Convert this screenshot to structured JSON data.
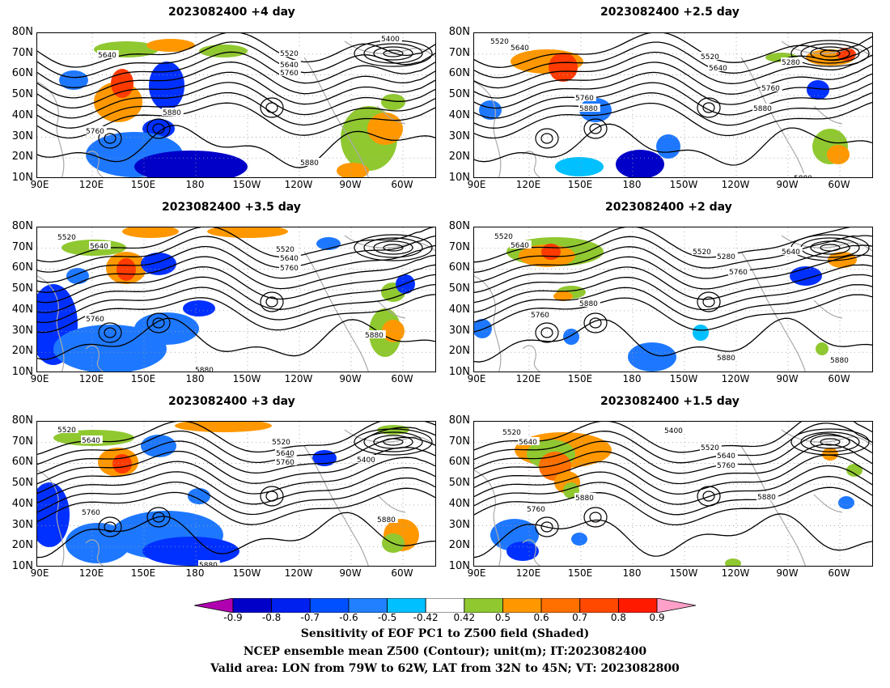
{
  "panels": [
    {
      "title": "2023082400 +4 day"
    },
    {
      "title": "2023082400 +2.5 day"
    },
    {
      "title": "2023082400 +3.5 day"
    },
    {
      "title": "2023082400 +2 day"
    },
    {
      "title": "2023082400 +3 day"
    },
    {
      "title": "2023082400 +1.5 day"
    }
  ],
  "axes": {
    "lat_labels": [
      "80N",
      "70N",
      "60N",
      "50N",
      "40N",
      "30N",
      "20N",
      "10N"
    ],
    "lon_labels": [
      "90E",
      "120E",
      "150E",
      "180",
      "150W",
      "120W",
      "90W",
      "60W"
    ]
  },
  "contour_labels": {
    "p0": [
      "5640",
      "5520",
      "5640",
      "5760",
      "5880",
      "5760",
      "5880",
      "5400"
    ],
    "p1": [
      "5520",
      "5640",
      "5520",
      "5640",
      "5280",
      "5760",
      "5760",
      "5880",
      "5880",
      "5880"
    ],
    "p2": [
      "5520",
      "5640",
      "5520",
      "5640",
      "5760",
      "5760",
      "5880",
      "5880"
    ],
    "p3": [
      "5520",
      "5640",
      "5520",
      "5280",
      "5640",
      "5760",
      "5760",
      "5880",
      "5880",
      "5880"
    ],
    "p4": [
      "5520",
      "5640",
      "5520",
      "5640",
      "5760",
      "5400",
      "5760",
      "5880",
      "5880"
    ],
    "p5": [
      "5520",
      "5640",
      "5400",
      "5520",
      "5640",
      "5760",
      "5760",
      "5880",
      "5880"
    ]
  },
  "colorbar": {
    "labels": [
      "-0.9",
      "-0.8",
      "-0.7",
      "-0.6",
      "-0.5",
      "-0.42",
      "0.42",
      "0.5",
      "0.6",
      "0.7",
      "0.8",
      "0.9"
    ],
    "colors": [
      "#b000b0",
      "#0000c8",
      "#0020f0",
      "#0050ff",
      "#2080ff",
      "#00c0ff",
      "#ffffff",
      "#90c830",
      "#ff9800",
      "#ff7000",
      "#ff4800",
      "#ff1a00",
      "#ffa0c8"
    ]
  },
  "footer": {
    "line1": "Sensitivity of EOF PC1 to Z500 field (Shaded)",
    "line2": "NCEP ensemble mean Z500 (Contour); unit(m); IT:2023082400",
    "line3": "Valid area: LON from 79W to 62W, LAT from 32N to 45N; VT: 2023082800"
  }
}
